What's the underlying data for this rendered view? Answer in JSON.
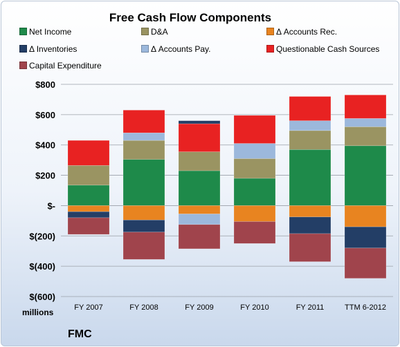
{
  "chart_data": {
    "type": "bar",
    "stacked": true,
    "title": "Free Cash Flow Components",
    "categories": [
      "FY 2007",
      "FY 2008",
      "FY 2009",
      "FY 2010",
      "FY 2011",
      "TTM 6-2012"
    ],
    "yticks": [
      "$800",
      "$600",
      "$400",
      "$200",
      "$-",
      "$(200)",
      "$(400)",
      "$(600)"
    ],
    "ylim": [
      -600,
      800
    ],
    "ylabel": "millions",
    "grid": true,
    "legend_position": "top",
    "series": [
      {
        "name": "Net Income",
        "color": "#1e8a4a",
        "values": [
          135,
          305,
          230,
          180,
          370,
          395
        ]
      },
      {
        "name": "D&A",
        "color": "#9a9462",
        "values": [
          130,
          125,
          125,
          130,
          125,
          125
        ]
      },
      {
        "name": "Δ Accounts Rec.",
        "color": "#e88420",
        "values": [
          -40,
          -95,
          -55,
          -105,
          -75,
          -140
        ]
      },
      {
        "name": "Δ Inventories",
        "color": "#233e66",
        "values": [
          -40,
          -80,
          0,
          0,
          -110,
          -140
        ]
      },
      {
        "name": "Δ Accounts Pay.",
        "color": "#9cb8dc",
        "values": [
          0,
          50,
          -70,
          100,
          65,
          55
        ]
      },
      {
        "name": "Questionable Cash Sources",
        "color": "#e82222",
        "values": [
          165,
          150,
          185,
          185,
          160,
          155
        ]
      },
      {
        "name": "Capital Expenditure",
        "color": "#a0444c",
        "values": [
          -110,
          -180,
          -160,
          -145,
          -185,
          -200
        ]
      },
      {
        "name": "",
        "color": "#233e66",
        "values": [
          0,
          0,
          20,
          0,
          0,
          0
        ]
      }
    ]
  },
  "footer": {
    "units": "millions",
    "company": "FMC"
  }
}
